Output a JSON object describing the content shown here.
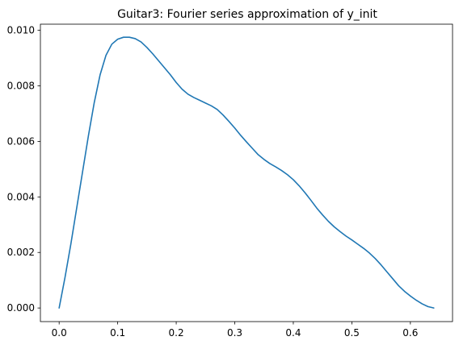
{
  "chart_data": {
    "type": "line",
    "title": "Guitar3: Fourier series approximation of y_init",
    "xlabel": "",
    "ylabel": "",
    "xlim": [
      -0.032,
      0.672
    ],
    "ylim": [
      -0.00049,
      0.01022
    ],
    "xticks": [
      0.0,
      0.1,
      0.2,
      0.3,
      0.4,
      0.5,
      0.6
    ],
    "xtick_labels": [
      "0.0",
      "0.1",
      "0.2",
      "0.3",
      "0.4",
      "0.5",
      "0.6"
    ],
    "yticks": [
      0.0,
      0.002,
      0.004,
      0.006,
      0.008,
      0.01
    ],
    "ytick_labels": [
      "0.000",
      "0.002",
      "0.004",
      "0.006",
      "0.008",
      "0.010"
    ],
    "grid": false,
    "series": [
      {
        "color": "#1f77b4",
        "x": [
          0.0,
          0.01,
          0.02,
          0.03,
          0.04,
          0.05,
          0.06,
          0.07,
          0.08,
          0.09,
          0.1,
          0.11,
          0.12,
          0.13,
          0.14,
          0.15,
          0.16,
          0.17,
          0.18,
          0.19,
          0.2,
          0.21,
          0.22,
          0.23,
          0.24,
          0.25,
          0.26,
          0.27,
          0.28,
          0.29,
          0.3,
          0.31,
          0.32,
          0.33,
          0.34,
          0.35,
          0.36,
          0.37,
          0.38,
          0.39,
          0.4,
          0.41,
          0.42,
          0.43,
          0.44,
          0.45,
          0.46,
          0.47,
          0.48,
          0.49,
          0.5,
          0.51,
          0.52,
          0.53,
          0.54,
          0.55,
          0.56,
          0.57,
          0.58,
          0.59,
          0.6,
          0.61,
          0.62,
          0.63,
          0.64
        ],
        "y": [
          0.0,
          0.0011,
          0.0023,
          0.0036,
          0.0049,
          0.0062,
          0.0074,
          0.0084,
          0.0091,
          0.0095,
          0.00968,
          0.00975,
          0.00975,
          0.0097,
          0.00958,
          0.00938,
          0.00915,
          0.0089,
          0.00865,
          0.0084,
          0.00812,
          0.00788,
          0.0077,
          0.00758,
          0.00748,
          0.00738,
          0.00728,
          0.00715,
          0.00695,
          0.00672,
          0.00648,
          0.00622,
          0.00598,
          0.00575,
          0.00552,
          0.00535,
          0.0052,
          0.00508,
          0.00495,
          0.0048,
          0.00462,
          0.0044,
          0.00415,
          0.00388,
          0.0036,
          0.00335,
          0.00312,
          0.00292,
          0.00275,
          0.00259,
          0.00245,
          0.0023,
          0.00215,
          0.00198,
          0.00178,
          0.00155,
          0.0013,
          0.00105,
          0.0008,
          0.0006,
          0.00043,
          0.00028,
          0.00015,
          5e-05,
          0.0
        ]
      }
    ]
  }
}
